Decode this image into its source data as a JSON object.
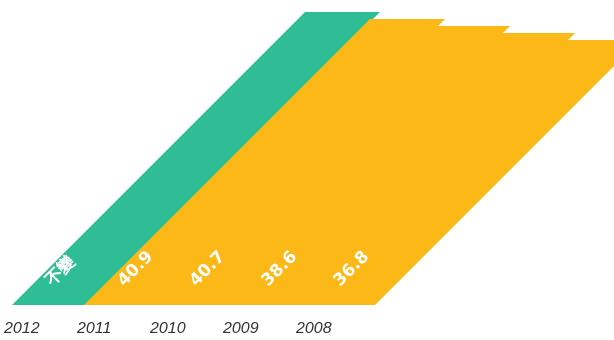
{
  "chart_data": {
    "type": "bar",
    "categories": [
      "2012",
      "2011",
      "2010",
      "2009",
      "2008"
    ],
    "values": [
      null,
      40.9,
      40.7,
      38.6,
      36.8
    ],
    "value_labels": [
      "不變",
      "40.9",
      "40.7",
      "38.6",
      "36.8"
    ],
    "bar_colors": [
      "#2FBD96",
      "#FBB817",
      "#FBB817",
      "#FBB817",
      "#FBB817"
    ],
    "grid": false,
    "legend": "none"
  }
}
